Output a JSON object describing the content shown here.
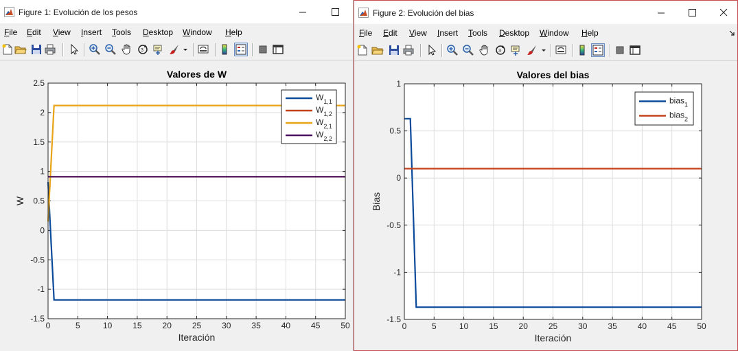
{
  "windows": [
    {
      "title": "Figure 1: Evolución de los pesos",
      "menu": [
        "File",
        "Edit",
        "View",
        "Insert",
        "Tools",
        "Desktop",
        "Window",
        "Help"
      ],
      "buttons": [
        "minimize",
        "maximize"
      ],
      "chart_data": {
        "type": "line",
        "title": "Valores de W",
        "xlabel": "Iteración",
        "ylabel": "W",
        "xlim": [
          0,
          50
        ],
        "ylim": [
          -1.5,
          2.5
        ],
        "xticks": [
          0,
          5,
          10,
          15,
          20,
          25,
          30,
          35,
          40,
          45,
          50
        ],
        "xtick_labels": [
          "0",
          "5",
          "10",
          "15",
          "20",
          "25",
          "30",
          "35",
          "40",
          "45",
          "50"
        ],
        "yticks": [
          -1.5,
          -1,
          -0.5,
          0,
          0.5,
          1,
          1.5,
          2,
          2.5
        ],
        "ytick_labels": [
          "-1.5",
          "-1",
          "-0.5",
          "0",
          "0.5",
          "1",
          "1.5",
          "2",
          "2.5"
        ],
        "grid": true,
        "legend_position": "top-right",
        "series": [
          {
            "name": "W",
            "sub": "1,1",
            "color": "#0b4a9a",
            "x": [
              0,
              1,
              50
            ],
            "y": [
              0.82,
              -1.18,
              -1.18
            ]
          },
          {
            "name": "W",
            "sub": "1,2",
            "color": "#c4421a",
            "x": [
              0,
              1,
              50
            ],
            "y": [
              0.91,
              0.91,
              0.91
            ]
          },
          {
            "name": "W",
            "sub": "2,1",
            "color": "#e8a317",
            "x": [
              0,
              1,
              50
            ],
            "y": [
              0.15,
              2.12,
              2.12
            ]
          },
          {
            "name": "W",
            "sub": "2,2",
            "color": "#4a1462",
            "x": [
              0,
              1,
              50
            ],
            "y": [
              0.91,
              0.91,
              0.91
            ]
          }
        ]
      }
    },
    {
      "title": "Figure 2: Evolución del bias",
      "menu": [
        "File",
        "Edit",
        "View",
        "Insert",
        "Tools",
        "Desktop",
        "Window",
        "Help"
      ],
      "buttons": [
        "minimize",
        "maximize",
        "close"
      ],
      "chart_data": {
        "type": "line",
        "title": "Valores del bias",
        "xlabel": "Iteración",
        "ylabel": "Bias",
        "xlim": [
          0,
          50
        ],
        "ylim": [
          -1.5,
          1
        ],
        "xticks": [
          0,
          5,
          10,
          15,
          20,
          25,
          30,
          35,
          40,
          45,
          50
        ],
        "xtick_labels": [
          "0",
          "5",
          "10",
          "15",
          "20",
          "25",
          "30",
          "35",
          "40",
          "45",
          "50"
        ],
        "yticks": [
          -1.5,
          -1,
          -0.5,
          0,
          0.5,
          1
        ],
        "ytick_labels": [
          "-1.5",
          "-1",
          "-0.5",
          "0",
          "0.5",
          "1"
        ],
        "grid": true,
        "legend_position": "top-right",
        "series": [
          {
            "name": "bias",
            "sub": "1",
            "color": "#0b4a9a",
            "x": [
              0,
              1,
              2,
              50
            ],
            "y": [
              0.63,
              0.63,
              -1.37,
              -1.37
            ]
          },
          {
            "name": "bias",
            "sub": "2",
            "color": "#c4421a",
            "x": [
              0,
              50
            ],
            "y": [
              0.1,
              0.1
            ]
          }
        ]
      }
    }
  ]
}
